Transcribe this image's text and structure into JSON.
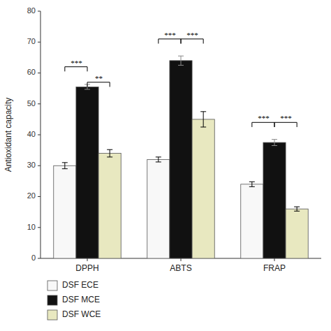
{
  "chart_data": {
    "type": "bar",
    "ylabel": "Antioxidant capacity",
    "categories": [
      "DPPH",
      "ABTS",
      "FRAP"
    ],
    "series": [
      {
        "name": "DSF ECE",
        "color": "#f8f8f8",
        "values": [
          30.0,
          32.0,
          24.0
        ],
        "errors": [
          1.0,
          0.8,
          0.8
        ]
      },
      {
        "name": "DSF MCE",
        "color": "#111111",
        "values": [
          55.5,
          64.0,
          37.5
        ],
        "errors": [
          0.8,
          1.5,
          1.0
        ]
      },
      {
        "name": "DSF WCE",
        "color": "#e8e8c0",
        "values": [
          34.0,
          45.0,
          16.0
        ],
        "errors": [
          1.2,
          2.5,
          0.7
        ]
      }
    ],
    "ylim": [
      0,
      80
    ],
    "yticks": [
      0,
      10,
      20,
      30,
      40,
      50,
      60,
      70,
      80
    ],
    "grid": false,
    "legend": "bottom",
    "annotations": [
      {
        "text": "***",
        "category": "DPPH",
        "series": [
          "DSF ECE",
          "DSF MCE"
        ],
        "y": 62
      },
      {
        "text": "**",
        "category": "DPPH",
        "series": [
          "DSF MCE",
          "DSF WCE"
        ],
        "y": 57
      },
      {
        "text": "***",
        "category": "ABTS",
        "series": [
          "DSF ECE",
          "DSF MCE"
        ],
        "y": 71
      },
      {
        "text": "***",
        "category": "ABTS",
        "series": [
          "DSF MCE",
          "DSF WCE"
        ],
        "y": 71
      },
      {
        "text": "***",
        "category": "FRAP",
        "series": [
          "DSF ECE",
          "DSF MCE"
        ],
        "y": 44
      },
      {
        "text": "***",
        "category": "FRAP",
        "series": [
          "DSF MCE",
          "DSF WCE"
        ],
        "y": 44
      }
    ]
  }
}
